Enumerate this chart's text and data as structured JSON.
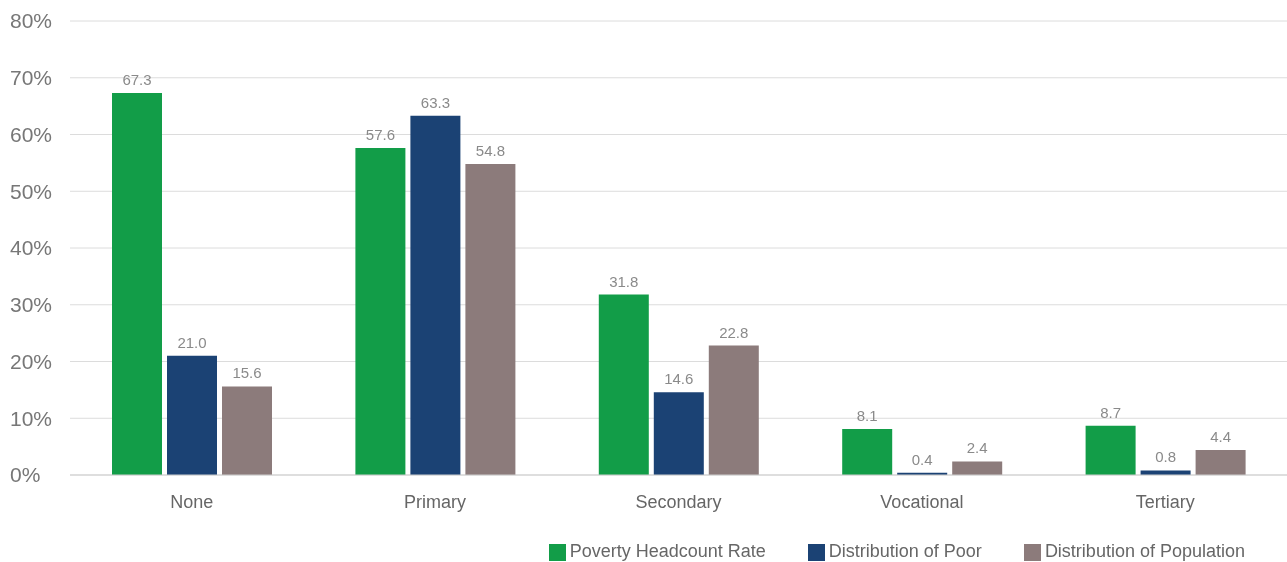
{
  "chart_data": {
    "type": "bar",
    "categories": [
      "None",
      "Primary",
      "Secondary",
      "Vocational",
      "Tertiary"
    ],
    "series": [
      {
        "name": "Poverty Headcount Rate",
        "color": "#129d48",
        "values": [
          67.3,
          57.6,
          31.8,
          8.1,
          8.7
        ],
        "value_labels": [
          "67.3",
          "57.6",
          "31.8",
          "8.1",
          "8.7"
        ]
      },
      {
        "name": "Distribution of Poor",
        "color": "#1b4274",
        "values": [
          21.0,
          63.3,
          14.6,
          0.4,
          0.8
        ],
        "value_labels": [
          "21.0",
          "63.3",
          "14.6",
          "0.4",
          "0.8"
        ]
      },
      {
        "name": "Distribution of Population",
        "color": "#8c7b7b",
        "values": [
          15.6,
          54.8,
          22.8,
          2.4,
          4.4
        ],
        "value_labels": [
          "15.6",
          "54.8",
          "22.8",
          "2.4",
          "4.4"
        ]
      }
    ],
    "ylim": [
      0,
      80
    ],
    "yticks": [
      {
        "value": 0,
        "label": "0%"
      },
      {
        "value": 10,
        "label": "10%"
      },
      {
        "value": 20,
        "label": "20%"
      },
      {
        "value": 30,
        "label": "30%"
      },
      {
        "value": 40,
        "label": "40%"
      },
      {
        "value": 50,
        "label": "50%"
      },
      {
        "value": 60,
        "label": "60%"
      },
      {
        "value": 70,
        "label": "70%"
      },
      {
        "value": 80,
        "label": "80%"
      }
    ],
    "grid": "y",
    "legend": "bottom right"
  }
}
